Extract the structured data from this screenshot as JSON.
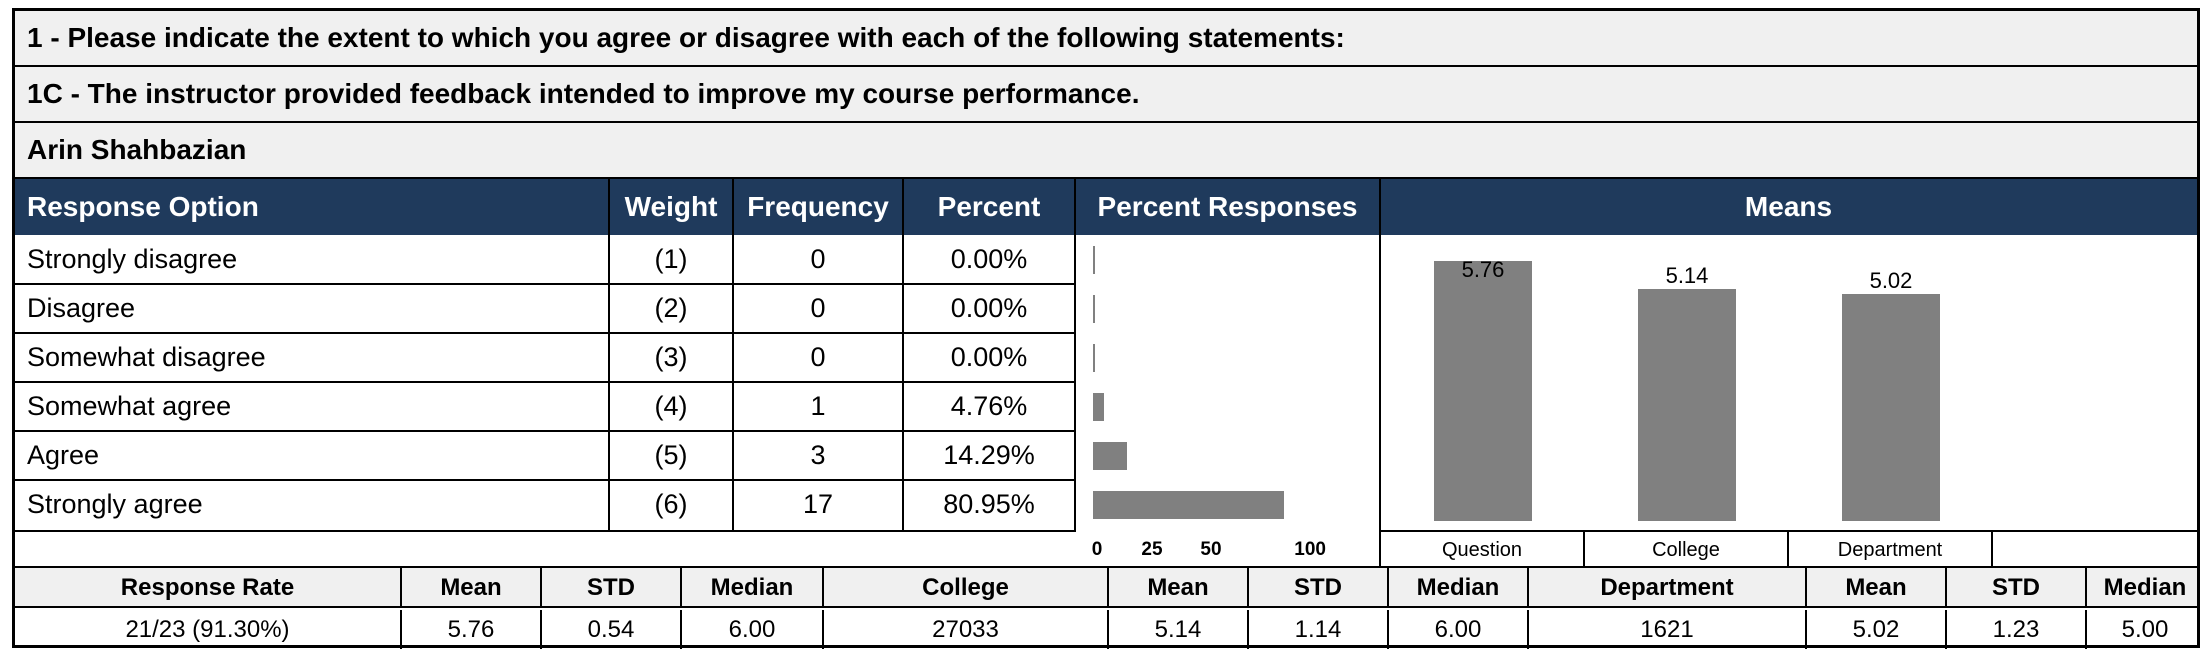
{
  "section_title": "1 - Please indicate the extent to which you agree or disagree with each of the following statements:",
  "question_title": "1C - The instructor provided feedback intended to improve my course performance.",
  "instructor_name": "Arin Shahbazian",
  "table_headers": {
    "option": "Response Option",
    "weight": "Weight",
    "frequency": "Frequency",
    "percent": "Percent",
    "percent_responses": "Percent Responses",
    "means": "Means"
  },
  "rows": [
    {
      "option": "Strongly disagree",
      "weight": "(1)",
      "frequency": "0",
      "percent": "0.00%"
    },
    {
      "option": "Disagree",
      "weight": "(2)",
      "frequency": "0",
      "percent": "0.00%"
    },
    {
      "option": "Somewhat disagree",
      "weight": "(3)",
      "frequency": "0",
      "percent": "0.00%"
    },
    {
      "option": "Somewhat agree",
      "weight": "(4)",
      "frequency": "1",
      "percent": "4.76%"
    },
    {
      "option": "Agree",
      "weight": "(5)",
      "frequency": "3",
      "percent": "14.29%"
    },
    {
      "option": "Strongly agree",
      "weight": "(6)",
      "frequency": "17",
      "percent": "80.95%"
    }
  ],
  "chart_data": [
    {
      "type": "bar",
      "orientation": "horizontal",
      "categories": [
        "Strongly disagree",
        "Disagree",
        "Somewhat disagree",
        "Somewhat agree",
        "Agree",
        "Strongly agree"
      ],
      "values": [
        0.0,
        0.0,
        0.0,
        4.76,
        14.29,
        80.95
      ],
      "xlim": [
        0,
        100
      ],
      "xticks": [
        "0",
        "25",
        "50",
        "100"
      ],
      "color": "#808080"
    },
    {
      "type": "bar",
      "categories": [
        "Question",
        "College",
        "Department"
      ],
      "values": [
        5.76,
        5.14,
        5.02
      ],
      "data_labels": [
        "5.76",
        "5.14",
        "5.02"
      ],
      "ylim": [
        0,
        6
      ],
      "color": "#808080"
    }
  ],
  "summary": {
    "headers": [
      "Response Rate",
      "Mean",
      "STD",
      "Median",
      "College",
      "Mean",
      "STD",
      "Median",
      "Department",
      "Mean",
      "STD",
      "Median"
    ],
    "values": [
      "21/23 (91.30%)",
      "5.76",
      "0.54",
      "6.00",
      "27033",
      "5.14",
      "1.14",
      "6.00",
      "1621",
      "5.02",
      "1.23",
      "5.00"
    ]
  },
  "colors": {
    "header_bg": "#1f3a5c",
    "row_gray": "#f0f0f0",
    "bar": "#808080"
  }
}
